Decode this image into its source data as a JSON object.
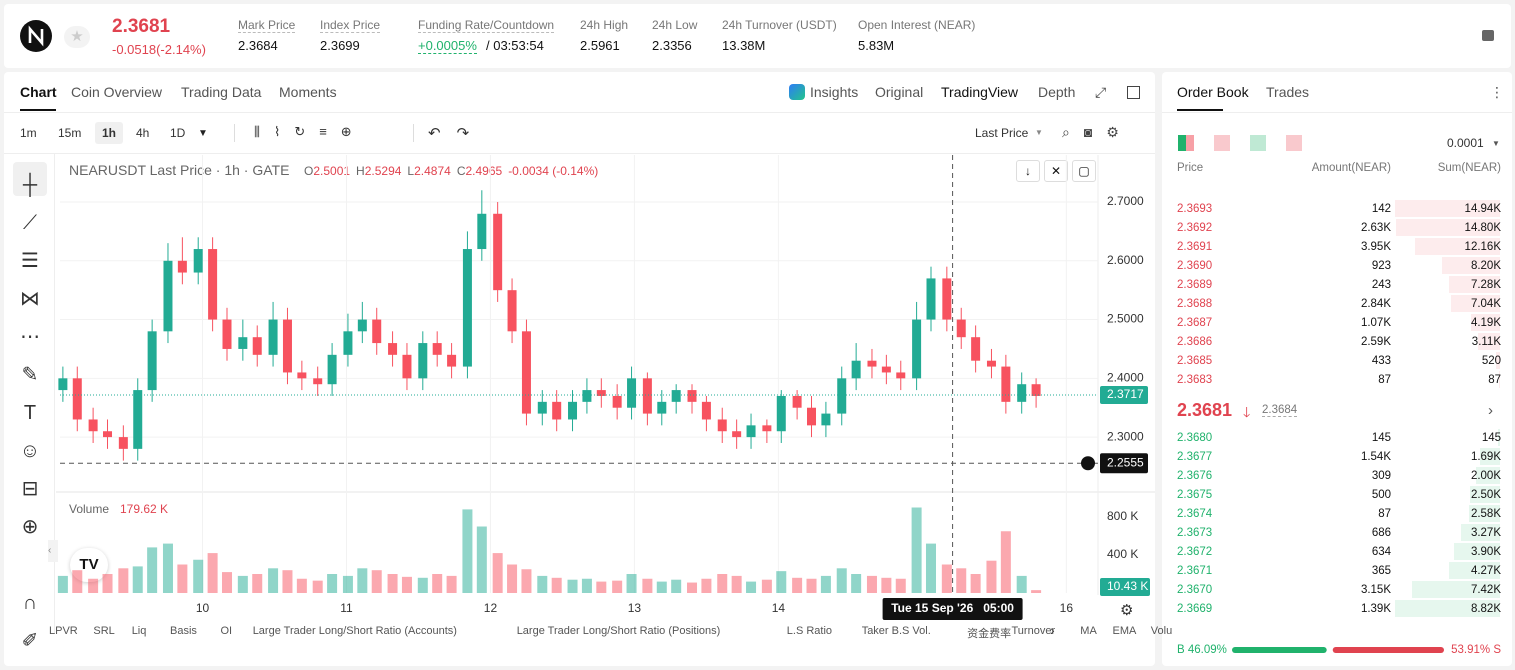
{
  "header": {
    "price": "2.3681",
    "change": "-0.0518(-2.14%)",
    "stats": [
      {
        "label": "Mark Price",
        "value": "2.3684"
      },
      {
        "label": "Index Price",
        "value": "2.3699"
      },
      {
        "label": "Funding Rate/Countdown",
        "value": "+0.0005%",
        "extra": "/ 03:53:54"
      },
      {
        "label": "24h High",
        "value": "2.5961"
      },
      {
        "label": "24h Low",
        "value": "2.3356"
      },
      {
        "label": "24h Turnover (USDT)",
        "value": "13.38M"
      },
      {
        "label": "Open Interest (NEAR)",
        "value": "5.83M"
      }
    ]
  },
  "tabs": [
    "Chart",
    "Coin Overview",
    "Trading Data",
    "Moments"
  ],
  "views": [
    "Insights",
    "Original",
    "TradingView",
    "Depth"
  ],
  "intervals": [
    "1m",
    "15m",
    "1h",
    "4h",
    "1D"
  ],
  "price_type": "Last Price",
  "chart_data": {
    "type": "candlestick",
    "legend": "NEARUSDT Last Price · 1h · GATE",
    "ohlc": [
      [
        "O",
        "2.5001"
      ],
      [
        "H",
        "2.5294"
      ],
      [
        "L",
        "2.4874"
      ],
      [
        "C",
        "2.4965"
      ]
    ],
    "ohlc_change": "-0.0034 (-0.14%)",
    "up_color": "#22ab94",
    "down_color": "#f7525f",
    "x": [
      9.03,
      9.13,
      9.24,
      9.34,
      9.45,
      9.55,
      9.65,
      9.76,
      9.86,
      9.97,
      10.07,
      10.17,
      10.28,
      10.38,
      10.49,
      10.59,
      10.69,
      10.8,
      10.9,
      11.01,
      11.11,
      11.21,
      11.32,
      11.42,
      11.53,
      11.63,
      11.73,
      11.84,
      11.94,
      12.05,
      12.15,
      12.25,
      12.36,
      12.46,
      12.57,
      12.67,
      12.77,
      12.88,
      12.98,
      13.09,
      13.19,
      13.29,
      13.4,
      13.5,
      13.61,
      13.71,
      13.81,
      13.92,
      14.02,
      14.13,
      14.23,
      14.33,
      14.44,
      14.54,
      14.65,
      14.75,
      14.85,
      14.96,
      15.06,
      15.17,
      15.27,
      15.37,
      15.48,
      15.58,
      15.69,
      15.79
    ],
    "open": [
      2.38,
      2.4,
      2.33,
      2.31,
      2.3,
      2.28,
      2.38,
      2.48,
      2.6,
      2.58,
      2.62,
      2.5,
      2.45,
      2.47,
      2.44,
      2.5,
      2.41,
      2.4,
      2.39,
      2.44,
      2.48,
      2.5,
      2.46,
      2.44,
      2.4,
      2.46,
      2.44,
      2.42,
      2.62,
      2.68,
      2.55,
      2.48,
      2.34,
      2.36,
      2.33,
      2.36,
      2.38,
      2.37,
      2.35,
      2.4,
      2.34,
      2.36,
      2.38,
      2.36,
      2.33,
      2.31,
      2.3,
      2.32,
      2.31,
      2.37,
      2.35,
      2.32,
      2.34,
      2.4,
      2.43,
      2.42,
      2.41,
      2.4,
      2.5,
      2.57,
      2.5,
      2.47,
      2.43,
      2.42,
      2.36,
      2.39
    ],
    "high": [
      2.42,
      2.42,
      2.35,
      2.33,
      2.32,
      2.4,
      2.5,
      2.63,
      2.64,
      2.64,
      2.64,
      2.52,
      2.5,
      2.49,
      2.53,
      2.52,
      2.43,
      2.42,
      2.46,
      2.51,
      2.53,
      2.52,
      2.48,
      2.46,
      2.48,
      2.48,
      2.46,
      2.65,
      2.72,
      2.7,
      2.57,
      2.5,
      2.38,
      2.38,
      2.38,
      2.4,
      2.4,
      2.39,
      2.42,
      2.41,
      2.38,
      2.39,
      2.39,
      2.37,
      2.35,
      2.33,
      2.34,
      2.33,
      2.38,
      2.38,
      2.37,
      2.36,
      2.42,
      2.46,
      2.45,
      2.44,
      2.43,
      2.53,
      2.59,
      2.59,
      2.52,
      2.49,
      2.45,
      2.44,
      2.41,
      2.4
    ],
    "low": [
      2.36,
      2.31,
      2.29,
      2.28,
      2.26,
      2.26,
      2.36,
      2.46,
      2.56,
      2.56,
      2.48,
      2.43,
      2.43,
      2.42,
      2.42,
      2.39,
      2.38,
      2.37,
      2.37,
      2.42,
      2.46,
      2.44,
      2.42,
      2.38,
      2.38,
      2.42,
      2.4,
      2.4,
      2.6,
      2.53,
      2.46,
      2.32,
      2.32,
      2.31,
      2.31,
      2.34,
      2.35,
      2.33,
      2.33,
      2.32,
      2.32,
      2.34,
      2.34,
      2.31,
      2.29,
      2.28,
      2.28,
      2.29,
      2.29,
      2.33,
      2.3,
      2.3,
      2.32,
      2.38,
      2.4,
      2.39,
      2.38,
      2.38,
      2.48,
      2.48,
      2.45,
      2.41,
      2.4,
      2.34,
      2.34,
      2.35
    ],
    "close": [
      2.4,
      2.33,
      2.31,
      2.3,
      2.28,
      2.38,
      2.48,
      2.6,
      2.58,
      2.62,
      2.5,
      2.45,
      2.47,
      2.44,
      2.5,
      2.41,
      2.4,
      2.39,
      2.44,
      2.48,
      2.5,
      2.46,
      2.44,
      2.4,
      2.46,
      2.44,
      2.42,
      2.62,
      2.68,
      2.55,
      2.48,
      2.34,
      2.36,
      2.33,
      2.36,
      2.38,
      2.37,
      2.35,
      2.4,
      2.34,
      2.36,
      2.38,
      2.36,
      2.33,
      2.31,
      2.3,
      2.32,
      2.31,
      2.37,
      2.35,
      2.32,
      2.34,
      2.4,
      2.43,
      2.42,
      2.41,
      2.4,
      2.5,
      2.57,
      2.5,
      2.47,
      2.43,
      2.42,
      2.36,
      2.39,
      2.37
    ],
    "xlim": [
      9.01,
      16.22
    ],
    "xticks": [
      10,
      11,
      12,
      13,
      14,
      16
    ],
    "ylim": [
      2.21,
      2.78
    ],
    "yticks": [
      {
        "value": 2.3,
        "label": "2.3000"
      },
      {
        "value": 2.4,
        "label": "2.4000"
      },
      {
        "value": 2.5,
        "label": "2.5000"
      },
      {
        "value": 2.6,
        "label": "2.6000"
      },
      {
        "value": 2.7,
        "label": "2.7000"
      }
    ],
    "last_price": 2.3717,
    "crosshair_price": 2.2555,
    "crosshair_x": 15.21,
    "crosshair_time": "Tue 15 Sep '26   05:00",
    "volume": {
      "title": "Volume",
      "last": "179.62 K",
      "current": "10.43 K",
      "ylim": [
        0,
        1000
      ],
      "yticks": [
        {
          "value": 400,
          "label": "400 K"
        },
        {
          "value": 800,
          "label": "800 K"
        }
      ],
      "values": [
        180,
        240,
        150,
        200,
        260,
        280,
        480,
        520,
        300,
        350,
        420,
        220,
        180,
        200,
        260,
        240,
        150,
        130,
        200,
        180,
        260,
        240,
        200,
        170,
        160,
        200,
        180,
        880,
        700,
        420,
        300,
        250,
        180,
        160,
        140,
        150,
        120,
        130,
        200,
        150,
        120,
        140,
        110,
        150,
        200,
        180,
        120,
        140,
        230,
        160,
        150,
        180,
        260,
        200,
        180,
        160,
        150,
        900,
        520,
        300,
        260,
        200,
        340,
        650,
        180,
        30
      ]
    }
  },
  "indicators": [
    "LPVR",
    "SRL",
    "Liq",
    "Basis",
    "OI",
    "Large Trader Long/Short Ratio (Accounts)",
    "Large Trader Long/Short Ratio (Positions)",
    "L.S Ratio",
    "Taker B.S Vol.",
    "资金费率",
    "Turnover",
    "MA",
    "EMA",
    "Volu"
  ],
  "order_book": {
    "tabs": [
      "Order Book",
      "Trades"
    ],
    "precision": "0.0001",
    "columns": [
      "Price",
      "Amount(NEAR)",
      "Sum(NEAR)"
    ],
    "asks": [
      [
        "2.3693",
        "142",
        "14.94K"
      ],
      [
        "2.3692",
        "2.63K",
        "14.80K"
      ],
      [
        "2.3691",
        "3.95K",
        "12.16K"
      ],
      [
        "2.3690",
        "923",
        "8.20K"
      ],
      [
        "2.3689",
        "243",
        "7.28K"
      ],
      [
        "2.3688",
        "2.84K",
        "7.04K"
      ],
      [
        "2.3687",
        "1.07K",
        "4.19K"
      ],
      [
        "2.3686",
        "2.59K",
        "3.11K"
      ],
      [
        "2.3685",
        "433",
        "520"
      ],
      [
        "2.3683",
        "87",
        "87"
      ]
    ],
    "last_price": "2.3681",
    "mark_price": "2.3684",
    "bids": [
      [
        "2.3680",
        "145",
        "145"
      ],
      [
        "2.3677",
        "1.54K",
        "1.69K"
      ],
      [
        "2.3676",
        "309",
        "2.00K"
      ],
      [
        "2.3675",
        "500",
        "2.50K"
      ],
      [
        "2.3674",
        "87",
        "2.58K"
      ],
      [
        "2.3673",
        "686",
        "3.27K"
      ],
      [
        "2.3672",
        "634",
        "3.90K"
      ],
      [
        "2.3671",
        "365",
        "4.27K"
      ],
      [
        "2.3670",
        "3.15K",
        "7.42K"
      ],
      [
        "2.3669",
        "1.39K",
        "8.82K"
      ]
    ],
    "buy_ratio": 46.09,
    "buy_label": "B 46.09%",
    "sell_ratio": 53.91,
    "sell_label": "53.91% S"
  }
}
